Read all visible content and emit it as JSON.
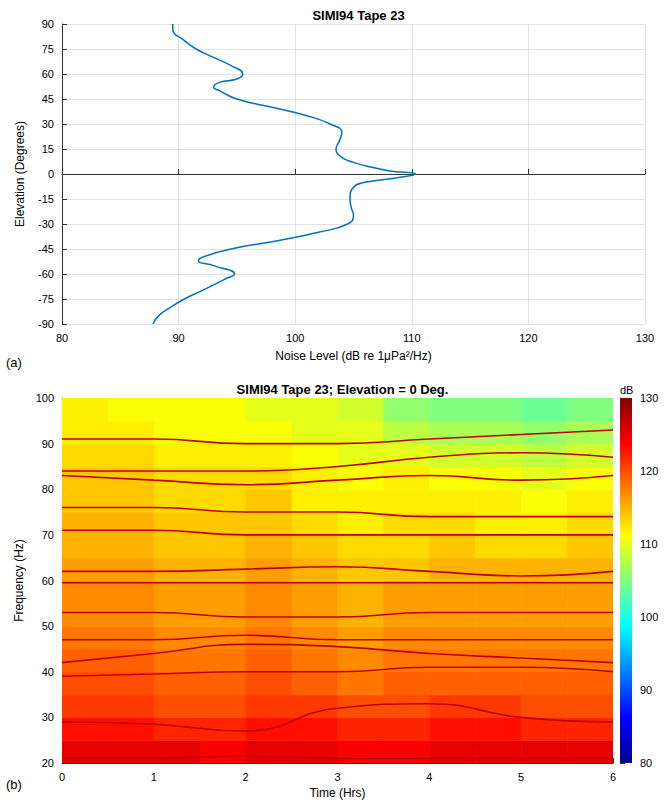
{
  "chart_data": [
    {
      "type": "line",
      "panel_label": "(a)",
      "title": "SIMI94 Tape 23",
      "x_label": "Noise Level (dB re 1μPa²/Hz)",
      "y_label": "Elevation (Degrees)",
      "xlim": [
        80,
        130
      ],
      "xticks": [
        80,
        90,
        100,
        110,
        120,
        130
      ],
      "ylim": [
        -90,
        90
      ],
      "yticks": [
        -90,
        -75,
        -60,
        -45,
        -30,
        -15,
        0,
        15,
        30,
        45,
        60,
        75,
        90
      ],
      "grid": true,
      "series": [
        {
          "color": "#0072bd",
          "line_style": "solid",
          "x": [
            87.8,
            88.3,
            89.3,
            90.5,
            92,
            94,
            94.8,
            93,
            91.7,
            92,
            94.5,
            98.5,
            102,
            104.5,
            105,
            104.8,
            104.7,
            105,
            106,
            109,
            110.3,
            108,
            106,
            105,
            104,
            103.5,
            103.8,
            104,
            103,
            101,
            98,
            95,
            93.5,
            93,
            93.5,
            95,
            95.5,
            94.5,
            93,
            91.5,
            90.5,
            89.5,
            89.5
          ],
          "y": [
            -90,
            -85,
            -80,
            -75,
            -70,
            -63,
            -60,
            -55,
            -52,
            -50,
            -45,
            -40,
            -35,
            -30,
            -25,
            -20,
            -15,
            -8,
            -5,
            -2,
            0,
            2,
            5,
            7,
            10,
            15,
            20,
            25,
            30,
            35,
            40,
            45,
            50,
            52,
            55,
            57,
            60,
            65,
            70,
            75,
            80,
            87,
            90
          ]
        }
      ]
    },
    {
      "type": "heatmap",
      "panel_label": "(b)",
      "title": "SIMI94 Tape 23; Elevation = 0 Deg.",
      "x_label": "Time (Hrs)",
      "y_label": "Frequency (Hz)",
      "xlim": [
        0,
        6
      ],
      "xticks": [
        0,
        1,
        2,
        3,
        4,
        5,
        6
      ],
      "ylim": [
        20,
        100
      ],
      "yticks": [
        20,
        30,
        40,
        50,
        60,
        70,
        80,
        90,
        100
      ],
      "grid": false,
      "time_edges": [
        0,
        0.5,
        1,
        1.5,
        2,
        2.5,
        3,
        3.5,
        4,
        4.5,
        5,
        5.5,
        6
      ],
      "freq_edges": [
        20,
        25,
        30,
        35,
        40,
        45,
        50,
        55,
        60,
        65,
        70,
        75,
        80,
        85,
        90,
        95,
        100
      ],
      "cells": [
        [
          125,
          125,
          125,
          124,
          125,
          125,
          124,
          124,
          125,
          125,
          125,
          125
        ],
        [
          123,
          123,
          122,
          122,
          123,
          123,
          122,
          122,
          123,
          123,
          122,
          122
        ],
        [
          121,
          121,
          120,
          120,
          121,
          121,
          120,
          120,
          121,
          121,
          120,
          120
        ],
        [
          120,
          120,
          119,
          119,
          120,
          119,
          118,
          119,
          119,
          119,
          119,
          119
        ],
        [
          119,
          119,
          118,
          118,
          119,
          118,
          117,
          118,
          118,
          118,
          118,
          118
        ],
        [
          118,
          118,
          117,
          117,
          118,
          117,
          116,
          117,
          117,
          117,
          117,
          117
        ],
        [
          117,
          117,
          116,
          116,
          117,
          116,
          115,
          116,
          116,
          116,
          116,
          116
        ],
        [
          117,
          117,
          116,
          116,
          117,
          116,
          115,
          116,
          116,
          116,
          116,
          116
        ],
        [
          116,
          116,
          115,
          115,
          116,
          115,
          114,
          114,
          115,
          115,
          115,
          115
        ],
        [
          115,
          115,
          114,
          114,
          115,
          114,
          113,
          113,
          114,
          113,
          113,
          114
        ],
        [
          115,
          115,
          114,
          114,
          114,
          113,
          112,
          113,
          113,
          112,
          112,
          113
        ],
        [
          114,
          114,
          113,
          113,
          114,
          112,
          112,
          112,
          112,
          112,
          111,
          112
        ],
        [
          114,
          114,
          113,
          113,
          113,
          112,
          111,
          112,
          111,
          111,
          110,
          111
        ],
        [
          113,
          113,
          112,
          112,
          112,
          111,
          110,
          110,
          109,
          109,
          108,
          109
        ],
        [
          112,
          112,
          111,
          111,
          111,
          110,
          110,
          108,
          107,
          107,
          106,
          107
        ],
        [
          112,
          111,
          111,
          111,
          110,
          110,
          109,
          106,
          105,
          105,
          104,
          105
        ]
      ],
      "colorbar": {
        "label": "dB",
        "range": [
          80,
          130
        ],
        "ticks": [
          80,
          90,
          100,
          110,
          120,
          130
        ]
      },
      "series": [
        {
          "type": "line",
          "color": "#c00000",
          "x": [
            0,
            1,
            2,
            3,
            4,
            5,
            6
          ],
          "values": [
            21,
            21,
            21.5,
            21,
            21,
            21,
            21
          ]
        },
        {
          "type": "line",
          "color": "#c00000",
          "x": [
            0,
            1,
            2,
            3,
            4,
            5,
            6
          ],
          "values": [
            29,
            28.5,
            27,
            32,
            33,
            30,
            29
          ]
        },
        {
          "type": "line",
          "color": "#c00000",
          "x": [
            0,
            1,
            2,
            3,
            4,
            5,
            6
          ],
          "values": [
            39,
            39.5,
            40,
            40,
            41,
            41,
            40
          ]
        },
        {
          "type": "line",
          "color": "#c00000",
          "x": [
            0,
            1,
            2,
            3,
            4,
            5,
            6
          ],
          "values": [
            42,
            44,
            46,
            45.5,
            44,
            43,
            42
          ]
        },
        {
          "type": "line",
          "color": "#c00000",
          "x": [
            0,
            1,
            2,
            3,
            4,
            5,
            6
          ],
          "values": [
            47,
            47,
            48,
            47,
            47,
            47,
            47
          ]
        },
        {
          "type": "line",
          "color": "#c00000",
          "x": [
            0,
            1,
            2,
            3,
            4,
            5,
            6
          ],
          "values": [
            53,
            53,
            52,
            52,
            53,
            53,
            53
          ]
        },
        {
          "type": "line",
          "color": "#c00000",
          "x": [
            0,
            1,
            2,
            3,
            4,
            5,
            6
          ],
          "values": [
            59.5,
            59.5,
            59.5,
            59.5,
            59.5,
            59.5,
            59.5
          ]
        },
        {
          "type": "line",
          "color": "#c00000",
          "x": [
            0,
            1,
            2,
            3,
            4,
            5,
            6
          ],
          "values": [
            62,
            62,
            62.5,
            63,
            62,
            61,
            62
          ]
        },
        {
          "type": "line",
          "color": "#c00000",
          "x": [
            0,
            1,
            2,
            3,
            4,
            5,
            6
          ],
          "values": [
            71,
            71,
            70,
            70,
            70,
            70,
            70
          ]
        },
        {
          "type": "line",
          "color": "#c00000",
          "x": [
            0,
            1,
            2,
            3,
            4,
            5,
            6
          ],
          "values": [
            76,
            76,
            75,
            75,
            74,
            74,
            74
          ]
        },
        {
          "type": "line",
          "color": "#c00000",
          "x": [
            0,
            1,
            2,
            3,
            4,
            5,
            6
          ],
          "values": [
            83,
            82,
            81,
            82,
            83,
            82,
            83
          ]
        },
        {
          "type": "line",
          "color": "#c00000",
          "x": [
            0,
            1,
            2,
            3,
            4,
            5,
            6
          ],
          "values": [
            84,
            84,
            84,
            85,
            87,
            88,
            87
          ]
        },
        {
          "type": "line",
          "color": "#c00000",
          "x": [
            0,
            1,
            2,
            3,
            4,
            5,
            6
          ],
          "values": [
            91,
            91,
            90,
            90,
            91,
            92,
            93
          ]
        }
      ]
    }
  ]
}
